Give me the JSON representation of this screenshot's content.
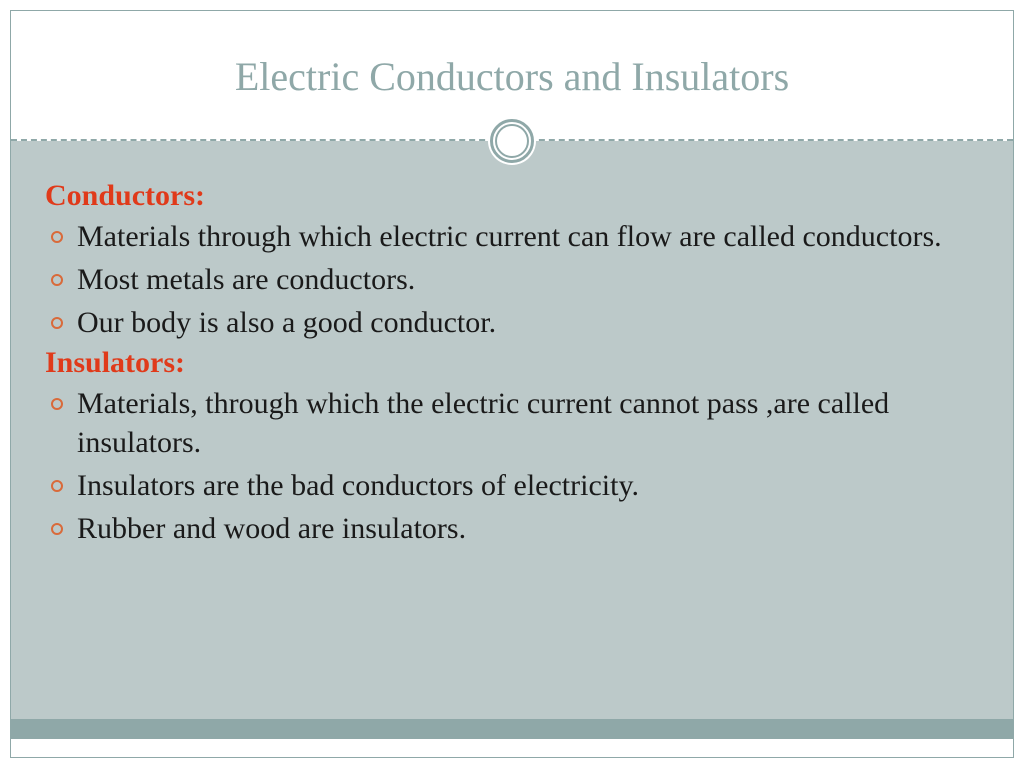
{
  "slide": {
    "title": "Electric Conductors and Insulators",
    "sections": [
      {
        "heading": "Conductors:",
        "bullets": [
          "Materials through which electric current can flow are called conductors.",
          "Most metals are conductors.",
          "Our body is also a good conductor."
        ]
      },
      {
        "heading": "Insulators:",
        "bullets": [
          "Materials, through which the electric current cannot pass ,are called insulators.",
          "Insulators are the bad conductors of electricity.",
          "Rubber and wood are insulators."
        ]
      }
    ]
  },
  "style": {
    "background_color": "#ffffff",
    "content_background": "#bcc9c9",
    "border_color": "#8fa8a8",
    "title_color": "#8fa8a8",
    "title_fontsize": 40,
    "heading_color": "#e03a1a",
    "heading_fontsize": 30,
    "heading_weight": "bold",
    "body_color": "#1a1a1a",
    "body_fontsize": 30,
    "bullet_color": "#d96a3a",
    "bullet_style": "hollow-circle",
    "footer_bar_color": "#8fa8a8",
    "font_family": "Georgia"
  }
}
